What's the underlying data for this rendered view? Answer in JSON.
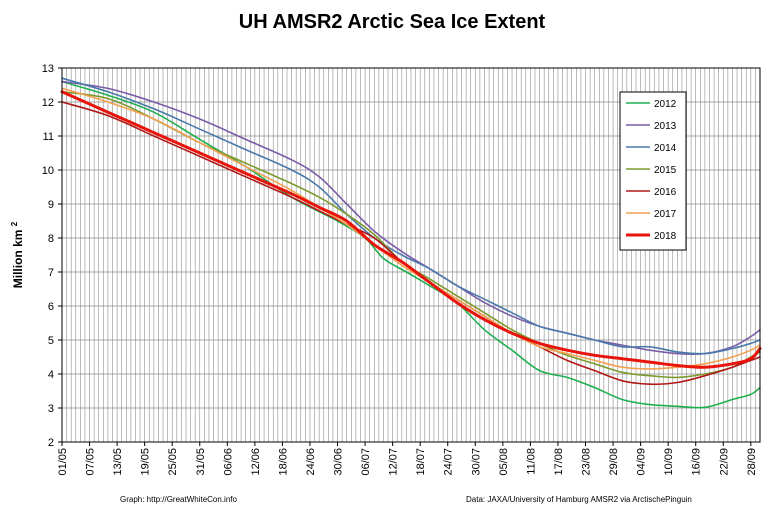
{
  "chart_data": {
    "type": "line",
    "title": "UH AMSR2 Arctic Sea Ice Extent",
    "ylabel": "Million km",
    "ylabel_superscript": "2",
    "xlabel": "",
    "ylim": [
      2,
      13
    ],
    "yticks": [
      "2",
      "3",
      "4",
      "5",
      "6",
      "7",
      "8",
      "9",
      "10",
      "11",
      "12",
      "13"
    ],
    "x_day_range": [
      0,
      152
    ],
    "xticks": [
      "01/05",
      "07/05",
      "13/05",
      "19/05",
      "25/05",
      "31/05",
      "06/06",
      "12/06",
      "18/06",
      "24/06",
      "30/06",
      "06/07",
      "12/07",
      "18/07",
      "24/07",
      "30/07",
      "05/08",
      "11/08",
      "17/08",
      "23/08",
      "29/08",
      "04/09",
      "10/09",
      "16/09",
      "22/09",
      "28/09"
    ],
    "grid": true,
    "legend_position": "right",
    "series": [
      {
        "name": "2012",
        "color": "#1fb050",
        "width": 1.6,
        "points": [
          [
            0,
            12.6
          ],
          [
            10,
            12.2
          ],
          [
            20,
            11.7
          ],
          [
            30,
            10.9
          ],
          [
            40,
            10.1
          ],
          [
            50,
            9.2
          ],
          [
            60,
            8.5
          ],
          [
            66,
            8.0
          ],
          [
            70,
            7.4
          ],
          [
            75,
            7.0
          ],
          [
            80,
            6.6
          ],
          [
            86,
            6.1
          ],
          [
            92,
            5.3
          ],
          [
            98,
            4.7
          ],
          [
            104,
            4.1
          ],
          [
            110,
            3.9
          ],
          [
            116,
            3.6
          ],
          [
            122,
            3.25
          ],
          [
            128,
            3.1
          ],
          [
            134,
            3.05
          ],
          [
            140,
            3.02
          ],
          [
            146,
            3.25
          ],
          [
            150,
            3.4
          ],
          [
            152,
            3.6
          ]
        ]
      },
      {
        "name": "2013",
        "color": "#7a5ca8",
        "width": 1.6,
        "points": [
          [
            0,
            12.6
          ],
          [
            10,
            12.4
          ],
          [
            20,
            12.0
          ],
          [
            30,
            11.5
          ],
          [
            40,
            10.9
          ],
          [
            50,
            10.3
          ],
          [
            56,
            9.8
          ],
          [
            62,
            9.0
          ],
          [
            68,
            8.2
          ],
          [
            74,
            7.6
          ],
          [
            80,
            7.1
          ],
          [
            86,
            6.6
          ],
          [
            92,
            6.1
          ],
          [
            98,
            5.7
          ],
          [
            104,
            5.4
          ],
          [
            110,
            5.2
          ],
          [
            116,
            5.0
          ],
          [
            122,
            4.85
          ],
          [
            128,
            4.7
          ],
          [
            134,
            4.6
          ],
          [
            140,
            4.6
          ],
          [
            146,
            4.8
          ],
          [
            150,
            5.1
          ],
          [
            152,
            5.3
          ]
        ]
      },
      {
        "name": "2014",
        "color": "#4a7aac",
        "width": 1.6,
        "points": [
          [
            0,
            12.7
          ],
          [
            10,
            12.3
          ],
          [
            20,
            11.8
          ],
          [
            30,
            11.2
          ],
          [
            40,
            10.6
          ],
          [
            50,
            10.0
          ],
          [
            56,
            9.5
          ],
          [
            62,
            8.7
          ],
          [
            68,
            8.0
          ],
          [
            74,
            7.5
          ],
          [
            80,
            7.1
          ],
          [
            86,
            6.6
          ],
          [
            92,
            6.2
          ],
          [
            98,
            5.8
          ],
          [
            104,
            5.4
          ],
          [
            110,
            5.2
          ],
          [
            116,
            5.0
          ],
          [
            122,
            4.8
          ],
          [
            128,
            4.8
          ],
          [
            134,
            4.65
          ],
          [
            140,
            4.6
          ],
          [
            146,
            4.75
          ],
          [
            150,
            4.9
          ],
          [
            152,
            5.0
          ]
        ]
      },
      {
        "name": "2015",
        "color": "#7c9a2e",
        "width": 1.6,
        "points": [
          [
            0,
            12.3
          ],
          [
            10,
            12.1
          ],
          [
            20,
            11.5
          ],
          [
            30,
            10.8
          ],
          [
            40,
            10.2
          ],
          [
            50,
            9.6
          ],
          [
            56,
            9.2
          ],
          [
            62,
            8.7
          ],
          [
            68,
            8.1
          ],
          [
            74,
            7.3
          ],
          [
            80,
            6.8
          ],
          [
            86,
            6.3
          ],
          [
            92,
            5.8
          ],
          [
            98,
            5.3
          ],
          [
            104,
            4.9
          ],
          [
            110,
            4.55
          ],
          [
            116,
            4.3
          ],
          [
            122,
            4.05
          ],
          [
            128,
            3.95
          ],
          [
            134,
            3.9
          ],
          [
            140,
            4.0
          ],
          [
            146,
            4.2
          ],
          [
            150,
            4.5
          ],
          [
            152,
            4.65
          ]
        ]
      },
      {
        "name": "2016",
        "color": "#b01818",
        "width": 1.6,
        "points": [
          [
            0,
            12.0
          ],
          [
            10,
            11.6
          ],
          [
            20,
            11.0
          ],
          [
            30,
            10.4
          ],
          [
            40,
            9.8
          ],
          [
            50,
            9.2
          ],
          [
            56,
            8.8
          ],
          [
            62,
            8.4
          ],
          [
            68,
            8.0
          ],
          [
            74,
            7.3
          ],
          [
            80,
            6.7
          ],
          [
            86,
            6.2
          ],
          [
            92,
            5.7
          ],
          [
            98,
            5.2
          ],
          [
            104,
            4.8
          ],
          [
            110,
            4.4
          ],
          [
            116,
            4.1
          ],
          [
            122,
            3.8
          ],
          [
            128,
            3.7
          ],
          [
            134,
            3.75
          ],
          [
            140,
            3.95
          ],
          [
            146,
            4.2
          ],
          [
            150,
            4.4
          ],
          [
            152,
            4.5
          ]
        ]
      },
      {
        "name": "2017",
        "color": "#f4a050",
        "width": 1.6,
        "points": [
          [
            0,
            12.4
          ],
          [
            10,
            12.0
          ],
          [
            20,
            11.5
          ],
          [
            30,
            10.8
          ],
          [
            40,
            10.1
          ],
          [
            50,
            9.4
          ],
          [
            56,
            8.9
          ],
          [
            62,
            8.4
          ],
          [
            68,
            7.8
          ],
          [
            74,
            7.2
          ],
          [
            80,
            6.7
          ],
          [
            86,
            6.2
          ],
          [
            92,
            5.7
          ],
          [
            98,
            5.2
          ],
          [
            104,
            4.8
          ],
          [
            110,
            4.6
          ],
          [
            116,
            4.4
          ],
          [
            122,
            4.2
          ],
          [
            128,
            4.15
          ],
          [
            134,
            4.2
          ],
          [
            140,
            4.3
          ],
          [
            146,
            4.5
          ],
          [
            150,
            4.7
          ],
          [
            152,
            4.85
          ]
        ]
      },
      {
        "name": "2018",
        "color": "#e8140c",
        "width": 3,
        "points": [
          [
            0,
            12.3
          ],
          [
            10,
            11.7
          ],
          [
            20,
            11.1
          ],
          [
            30,
            10.5
          ],
          [
            40,
            9.9
          ],
          [
            50,
            9.3
          ],
          [
            56,
            8.9
          ],
          [
            62,
            8.5
          ],
          [
            68,
            7.8
          ],
          [
            74,
            7.3
          ],
          [
            80,
            6.7
          ],
          [
            86,
            6.1
          ],
          [
            92,
            5.6
          ],
          [
            98,
            5.2
          ],
          [
            104,
            4.9
          ],
          [
            110,
            4.7
          ],
          [
            116,
            4.55
          ],
          [
            122,
            4.45
          ],
          [
            128,
            4.35
          ],
          [
            134,
            4.25
          ],
          [
            140,
            4.2
          ],
          [
            146,
            4.3
          ],
          [
            150,
            4.45
          ],
          [
            152,
            4.75
          ]
        ]
      }
    ]
  },
  "footer": {
    "left": "Graph: http://GreatWhiteCon.info",
    "right": "Data: JAXA/University of Hamburg AMSR2 via ArctischePinguin"
  }
}
